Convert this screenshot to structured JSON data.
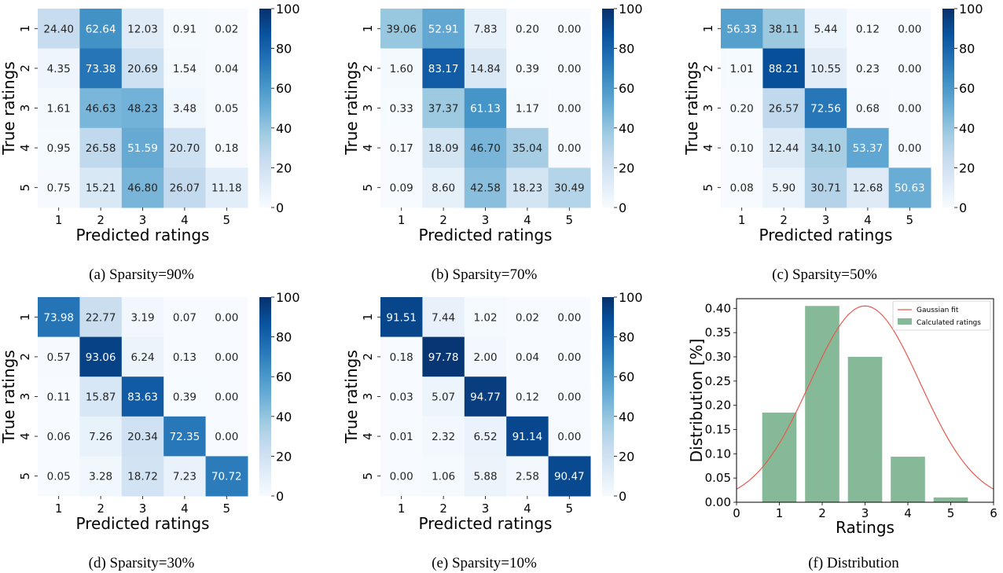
{
  "chart_data": [
    {
      "type": "heatmap",
      "caption": "(a) Sparsity=90%",
      "xlabel": "Predicted ratings",
      "ylabel": "True ratings",
      "x_categories": [
        "1",
        "2",
        "3",
        "4",
        "5"
      ],
      "y_categories": [
        "1",
        "2",
        "3",
        "4",
        "5"
      ],
      "colorbar": {
        "min": 0,
        "max": 100,
        "ticks": [
          "0",
          "20",
          "40",
          "60",
          "80",
          "100"
        ],
        "colormap": "Blues"
      },
      "values": [
        [
          "24.40",
          "62.64",
          "12.03",
          "0.91",
          "0.02"
        ],
        [
          "4.35",
          "73.38",
          "20.69",
          "1.54",
          "0.04"
        ],
        [
          "1.61",
          "46.63",
          "48.23",
          "3.48",
          "0.05"
        ],
        [
          "0.95",
          "26.58",
          "51.59",
          "20.70",
          "0.18"
        ],
        [
          "0.75",
          "15.21",
          "46.80",
          "26.07",
          "11.18"
        ]
      ]
    },
    {
      "type": "heatmap",
      "caption": "(b) Sparsity=70%",
      "xlabel": "Predicted ratings",
      "ylabel": "True ratings",
      "x_categories": [
        "1",
        "2",
        "3",
        "4",
        "5"
      ],
      "y_categories": [
        "1",
        "2",
        "3",
        "4",
        "5"
      ],
      "colorbar": {
        "min": 0,
        "max": 100,
        "ticks": [
          "0",
          "20",
          "40",
          "60",
          "80",
          "100"
        ],
        "colormap": "Blues"
      },
      "values": [
        [
          "39.06",
          "52.91",
          "7.83",
          "0.20",
          "0.00"
        ],
        [
          "1.60",
          "83.17",
          "14.84",
          "0.39",
          "0.00"
        ],
        [
          "0.33",
          "37.37",
          "61.13",
          "1.17",
          "0.00"
        ],
        [
          "0.17",
          "18.09",
          "46.70",
          "35.04",
          "0.00"
        ],
        [
          "0.09",
          "8.60",
          "42.58",
          "18.23",
          "30.49"
        ]
      ]
    },
    {
      "type": "heatmap",
      "caption": "(c) Sparsity=50%",
      "xlabel": "Predicted ratings",
      "ylabel": "True ratings",
      "x_categories": [
        "1",
        "2",
        "3",
        "4",
        "5"
      ],
      "y_categories": [
        "1",
        "2",
        "3",
        "4",
        "5"
      ],
      "colorbar": {
        "min": 0,
        "max": 100,
        "ticks": [
          "0",
          "20",
          "40",
          "60",
          "80",
          "100"
        ],
        "colormap": "Blues"
      },
      "values": [
        [
          "56.33",
          "38.11",
          "5.44",
          "0.12",
          "0.00"
        ],
        [
          "1.01",
          "88.21",
          "10.55",
          "0.23",
          "0.00"
        ],
        [
          "0.20",
          "26.57",
          "72.56",
          "0.68",
          "0.00"
        ],
        [
          "0.10",
          "12.44",
          "34.10",
          "53.37",
          "0.00"
        ],
        [
          "0.08",
          "5.90",
          "30.71",
          "12.68",
          "50.63"
        ]
      ]
    },
    {
      "type": "heatmap",
      "caption": "(d) Sparsity=30%",
      "xlabel": "Predicted ratings",
      "ylabel": "True ratings",
      "x_categories": [
        "1",
        "2",
        "3",
        "4",
        "5"
      ],
      "y_categories": [
        "1",
        "2",
        "3",
        "4",
        "5"
      ],
      "colorbar": {
        "min": 0,
        "max": 100,
        "ticks": [
          "0",
          "20",
          "40",
          "60",
          "80",
          "100"
        ],
        "colormap": "Blues"
      },
      "values": [
        [
          "73.98",
          "22.77",
          "3.19",
          "0.07",
          "0.00"
        ],
        [
          "0.57",
          "93.06",
          "6.24",
          "0.13",
          "0.00"
        ],
        [
          "0.11",
          "15.87",
          "83.63",
          "0.39",
          "0.00"
        ],
        [
          "0.06",
          "7.26",
          "20.34",
          "72.35",
          "0.00"
        ],
        [
          "0.05",
          "3.28",
          "18.72",
          "7.23",
          "70.72"
        ]
      ]
    },
    {
      "type": "heatmap",
      "caption": "(e) Sparsity=10%",
      "xlabel": "Predicted ratings",
      "ylabel": "True ratings",
      "x_categories": [
        "1",
        "2",
        "3",
        "4",
        "5"
      ],
      "y_categories": [
        "1",
        "2",
        "3",
        "4",
        "5"
      ],
      "colorbar": {
        "min": 0,
        "max": 100,
        "ticks": [
          "0",
          "20",
          "40",
          "60",
          "80",
          "100"
        ],
        "colormap": "Blues"
      },
      "values": [
        [
          "91.51",
          "7.44",
          "1.02",
          "0.02",
          "0.00"
        ],
        [
          "0.18",
          "97.78",
          "2.00",
          "0.04",
          "0.00"
        ],
        [
          "0.03",
          "5.07",
          "94.77",
          "0.12",
          "0.00"
        ],
        [
          "0.01",
          "2.32",
          "6.52",
          "91.14",
          "0.00"
        ],
        [
          "0.00",
          "1.06",
          "5.88",
          "2.58",
          "90.47"
        ]
      ]
    },
    {
      "type": "bar",
      "caption": "(f) Distribution",
      "xlabel": "Ratings",
      "ylabel": "Distribution [%]",
      "xlim": [
        0,
        6
      ],
      "ylim": [
        0,
        0.42
      ],
      "xticks": [
        "0",
        "1",
        "2",
        "3",
        "4",
        "5",
        "6"
      ],
      "yticks": [
        "0.00",
        "0.05",
        "0.10",
        "0.15",
        "0.20",
        "0.25",
        "0.30",
        "0.35",
        "0.40"
      ],
      "x": [
        1,
        2,
        3,
        4,
        5
      ],
      "values": [
        0.185,
        0.405,
        0.3,
        0.094,
        0.01
      ],
      "bar_color": "#86b997",
      "line": {
        "name": "Gaussian fit",
        "color": "#e8594f",
        "mean": 3.0,
        "std": 1.29,
        "peak": 0.405
      },
      "legend": {
        "position": "top-right",
        "entries": [
          "Gaussian fit",
          "Calculated ratings"
        ]
      }
    }
  ]
}
